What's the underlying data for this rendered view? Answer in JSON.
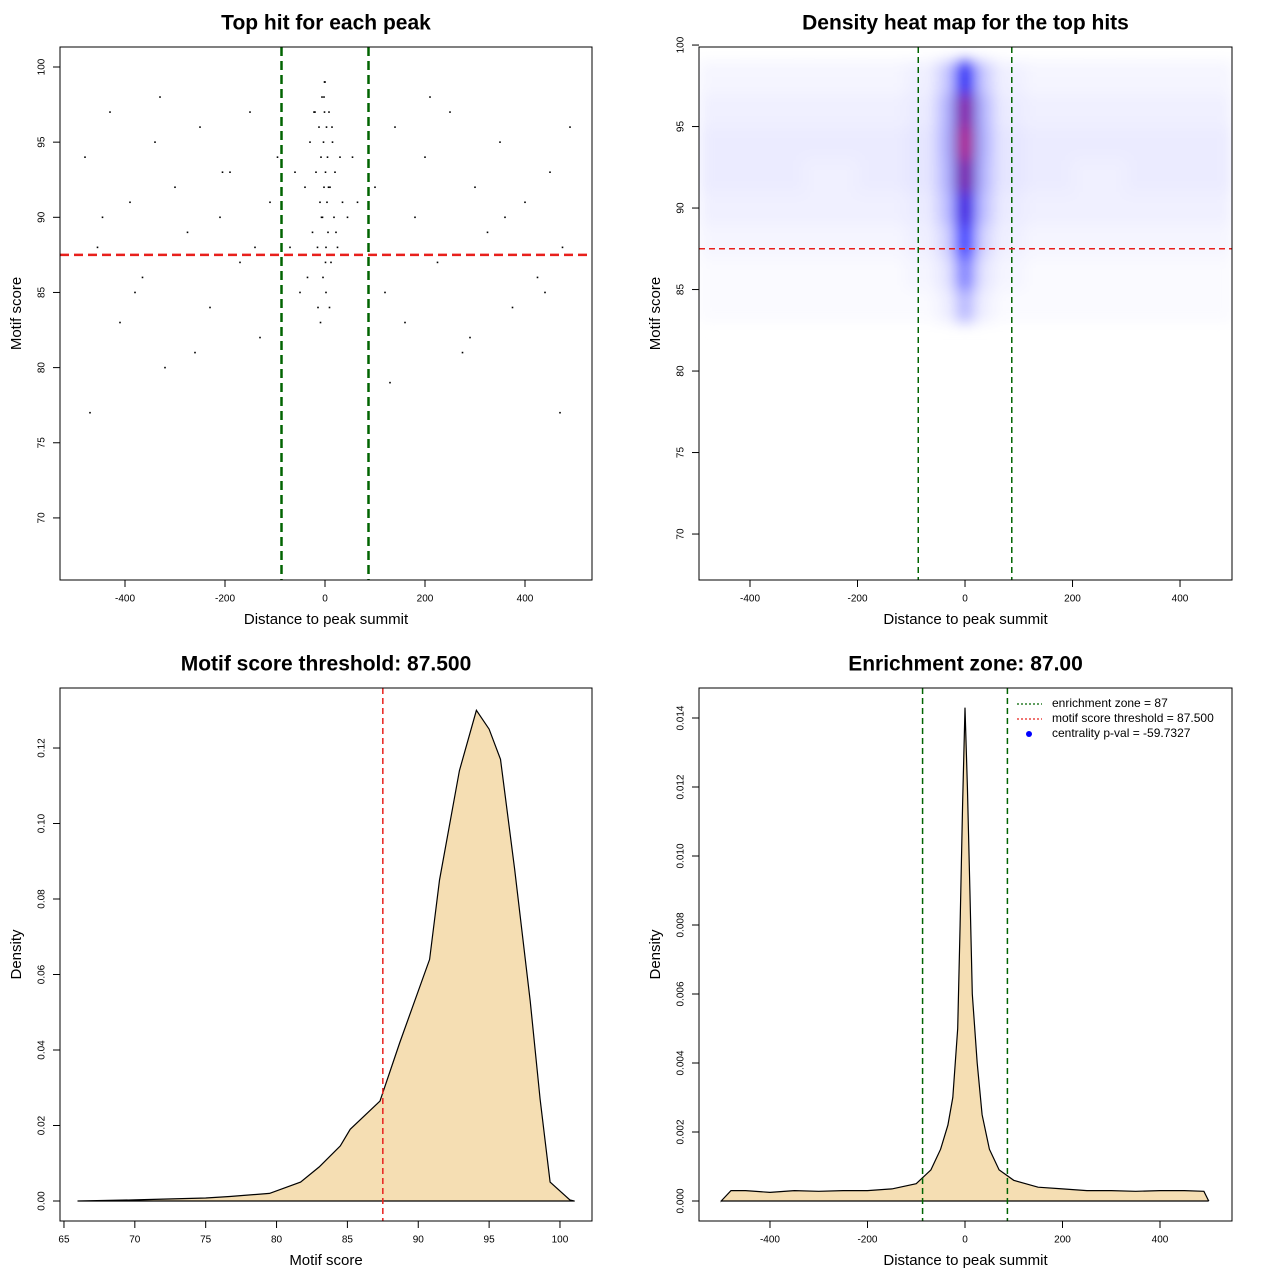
{
  "chart_data": [
    {
      "type": "scatter",
      "title": "Top hit for each peak",
      "x_label": "Distance to peak summit",
      "y_label": "Motif score",
      "color": "#000000",
      "x": [
        -480,
        -455,
        -430,
        -410,
        -390,
        -365,
        -340,
        -320,
        -300,
        -275,
        -250,
        -230,
        -210,
        -190,
        -170,
        -150,
        -130,
        -110,
        -95,
        -470,
        -445,
        -380,
        -330,
        -260,
        -205,
        -140,
        100,
        120,
        140,
        160,
        180,
        200,
        225,
        250,
        275,
        300,
        325,
        350,
        375,
        400,
        425,
        450,
        475,
        490,
        130,
        210,
        290,
        360,
        440,
        470,
        -40,
        -30,
        -25,
        -20,
        -18,
        -15,
        -12,
        -10,
        -8,
        -6,
        -5,
        -4,
        -3,
        -2,
        -1,
        0,
        1,
        2,
        3,
        4,
        5,
        6,
        8,
        10,
        12,
        15,
        18,
        20,
        25,
        30,
        35,
        -35,
        -22,
        -14,
        -7,
        -2,
        2,
        7,
        14,
        22,
        -60,
        -50,
        45,
        55,
        -70,
        65,
        -9,
        9,
        -1,
        1
      ],
      "y": [
        94,
        88,
        97,
        83,
        91,
        86,
        95,
        80,
        92,
        89,
        96,
        84,
        90,
        93,
        87,
        97,
        82,
        91,
        94,
        77,
        90,
        85,
        98,
        81,
        93,
        88,
        92,
        85,
        96,
        83,
        90,
        94,
        87,
        97,
        81,
        92,
        89,
        95,
        84,
        91,
        86,
        93,
        88,
        96,
        79,
        98,
        82,
        90,
        85,
        77,
        92,
        95,
        89,
        97,
        93,
        88,
        96,
        91,
        94,
        98,
        90,
        86,
        95,
        92,
        97,
        99,
        93,
        88,
        96,
        91,
        94,
        89,
        97,
        92,
        87,
        95,
        90,
        93,
        88,
        94,
        91,
        86,
        97,
        84,
        90,
        98,
        85,
        92,
        96,
        89,
        93,
        85,
        90,
        94,
        88,
        91,
        83,
        84,
        99,
        87
      ],
      "xlim": [
        -530,
        534
      ],
      "ylim": [
        65.87,
        101.33
      ],
      "xticks": [
        -400,
        -200,
        0,
        200,
        400
      ],
      "yticks": [
        70,
        75,
        80,
        85,
        90,
        95,
        100
      ],
      "vlines": [
        {
          "value": -87,
          "color": "#006400"
        },
        {
          "value": 87,
          "color": "#006400"
        }
      ],
      "hlines": [
        {
          "value": 87.5,
          "color": "#e8201c"
        }
      ]
    },
    {
      "type": "heatmap",
      "title": "Density heat map for the top hits",
      "x_label": "Distance to peak summit",
      "y_label": "Motif score",
      "x": [
        -450,
        -350,
        -250,
        -150,
        -75,
        -30,
        -10,
        0,
        10,
        30,
        75,
        150,
        250,
        350,
        450
      ],
      "y": [
        84,
        86,
        88,
        90,
        92,
        94,
        96,
        98
      ],
      "z": [
        [
          0.01,
          0.01,
          0.01,
          0.01,
          0.01,
          0.03,
          0.1,
          0.2,
          0.1,
          0.03,
          0.01,
          0.01,
          0.01,
          0.01,
          0.01
        ],
        [
          0.01,
          0.01,
          0.01,
          0.01,
          0.02,
          0.05,
          0.2,
          0.35,
          0.2,
          0.05,
          0.02,
          0.01,
          0.01,
          0.01,
          0.01
        ],
        [
          0.02,
          0.02,
          0.02,
          0.02,
          0.03,
          0.08,
          0.35,
          0.5,
          0.35,
          0.08,
          0.03,
          0.02,
          0.02,
          0.02,
          0.02
        ],
        [
          0.03,
          0.03,
          0.03,
          0.03,
          0.04,
          0.12,
          0.5,
          0.7,
          0.5,
          0.12,
          0.04,
          0.03,
          0.03,
          0.03,
          0.03
        ],
        [
          0.04,
          0.04,
          0.03,
          0.04,
          0.05,
          0.14,
          0.6,
          0.85,
          0.6,
          0.14,
          0.05,
          0.04,
          0.03,
          0.04,
          0.04
        ],
        [
          0.04,
          0.04,
          0.04,
          0.04,
          0.05,
          0.15,
          0.65,
          1,
          0.65,
          0.15,
          0.05,
          0.04,
          0.04,
          0.04,
          0.04
        ],
        [
          0.03,
          0.03,
          0.03,
          0.03,
          0.04,
          0.14,
          0.6,
          0.9,
          0.6,
          0.14,
          0.04,
          0.03,
          0.03,
          0.03,
          0.03
        ],
        [
          0.02,
          0.02,
          0.02,
          0.02,
          0.03,
          0.1,
          0.4,
          0.55,
          0.4,
          0.1,
          0.03,
          0.02,
          0.02,
          0.02,
          0.02
        ]
      ],
      "xlim": [
        -494.9,
        496.7
      ],
      "ylim": [
        67.18,
        99.88
      ],
      "xticks": [
        -400,
        -200,
        0,
        200,
        400
      ],
      "yticks": [
        70,
        75,
        80,
        85,
        90,
        95,
        100
      ],
      "vlines": [
        {
          "value": -87,
          "color": "#006400"
        },
        {
          "value": 87,
          "color": "#006400"
        }
      ],
      "hlines": [
        {
          "value": 87.5,
          "color": "#e8201c"
        }
      ]
    },
    {
      "type": "area",
      "title": "Motif score threshold: 87.500",
      "x_label": "Motif score",
      "y_label": "Density",
      "color": "#f5deb3",
      "x": [
        66,
        70,
        75,
        76.7,
        79.5,
        81.7,
        83,
        84.5,
        85.2,
        87.3,
        88.7,
        90.8,
        91.5,
        92.9,
        94.1,
        95,
        95.8,
        96.8,
        97.9,
        98.6,
        99.3,
        100.7,
        101
      ],
      "values": [
        0,
        0.0003,
        0.0008,
        0.0012,
        0.002,
        0.005,
        0.009,
        0.0146,
        0.019,
        0.0265,
        0.042,
        0.064,
        0.085,
        0.114,
        0.13,
        0.125,
        0.117,
        0.088,
        0.053,
        0.027,
        0.005,
        0.0003,
        0
      ],
      "xlim": [
        64.72,
        102.26
      ],
      "ylim": [
        -0.0053,
        0.1359
      ],
      "xticks": [
        65,
        70,
        75,
        80,
        85,
        90,
        95,
        100
      ],
      "yticks": [
        {
          "value": 0,
          "label": "0.00"
        },
        {
          "value": 0.02,
          "label": "0.02"
        },
        {
          "value": 0.04,
          "label": "0.04"
        },
        {
          "value": 0.06,
          "label": "0.06"
        },
        {
          "value": 0.08,
          "label": "0.08"
        },
        {
          "value": 0.1,
          "label": "0.10"
        },
        {
          "value": 0.12,
          "label": "0.12"
        }
      ],
      "vlines": [
        {
          "value": 87.5,
          "color": "#e8201c"
        }
      ],
      "hlines": []
    },
    {
      "type": "area",
      "title": "Enrichment zone: 87.00",
      "x_label": "Distance to peak summit",
      "y_label": "Density",
      "color": "#f5deb3",
      "x": [
        -500,
        -480,
        -450,
        -400,
        -350,
        -300,
        -250,
        -200,
        -150,
        -100,
        -70,
        -50,
        -35,
        -25,
        -15,
        -10,
        -5,
        0,
        5,
        10,
        15,
        25,
        35,
        50,
        70,
        100,
        150,
        200,
        250,
        300,
        350,
        400,
        450,
        490,
        500
      ],
      "values": [
        0,
        0.0003,
        0.0003,
        0.00025,
        0.0003,
        0.00028,
        0.0003,
        0.0003,
        0.00035,
        0.0005,
        0.0009,
        0.0015,
        0.0022,
        0.003,
        0.005,
        0.008,
        0.0115,
        0.0143,
        0.012,
        0.009,
        0.006,
        0.004,
        0.0025,
        0.0015,
        0.0009,
        0.0006,
        0.0004,
        0.00035,
        0.0003,
        0.0003,
        0.00028,
        0.0003,
        0.0003,
        0.00028,
        0
      ],
      "xlim": [
        -545.6,
        547.7
      ],
      "ylim": [
        -0.00058,
        0.01487
      ],
      "xticks": [
        -400,
        -200,
        0,
        200,
        400
      ],
      "yticks": [
        {
          "value": 0,
          "label": "0.000"
        },
        {
          "value": 0.002,
          "label": "0.002"
        },
        {
          "value": 0.004,
          "label": "0.004"
        },
        {
          "value": 0.006,
          "label": "0.006"
        },
        {
          "value": 0.008,
          "label": "0.008"
        },
        {
          "value": 0.01,
          "label": "0.010"
        },
        {
          "value": 0.012,
          "label": "0.012"
        },
        {
          "value": 0.014,
          "label": "0.014"
        }
      ],
      "vlines": [
        {
          "value": -87,
          "color": "#006400"
        },
        {
          "value": 87,
          "color": "#006400"
        }
      ],
      "hlines": [],
      "legend": [
        {
          "label": "enrichment zone = 87",
          "color": "#006400",
          "style": "dotted"
        },
        {
          "label": "motif score threshold = 87.500",
          "color": "#e8201c",
          "style": "dotted"
        },
        {
          "label": "centrality p-val = -59.7327",
          "color": "#0000ff",
          "style": "point"
        }
      ]
    }
  ]
}
